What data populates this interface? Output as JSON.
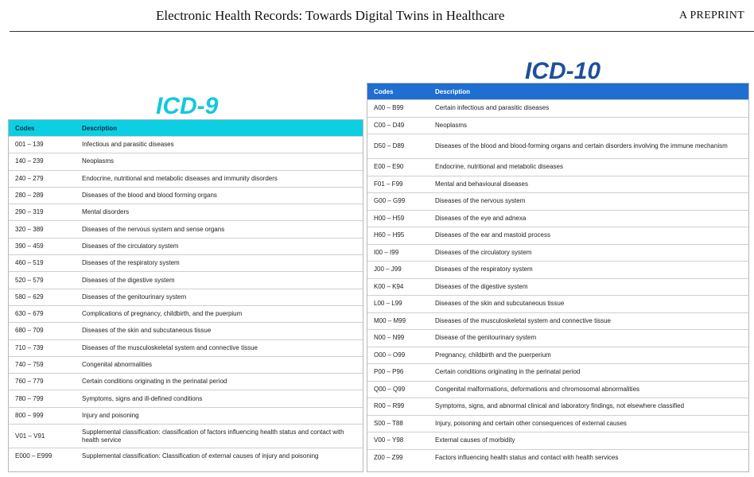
{
  "header": {
    "title": "Electronic Health Records: Towards Digital Twins in Healthcare",
    "tag": "A PREPRINT"
  },
  "icd9": {
    "title": "ICD-9",
    "columns": [
      "Codes",
      "Description"
    ],
    "accent_color": "#14c8dc",
    "rows": [
      {
        "code": "001 – 139",
        "desc": "Infectious and parasitic diseases"
      },
      {
        "code": "140 – 239",
        "desc": "Neoplasms"
      },
      {
        "code": "240 – 279",
        "desc": "Endocrine, nutritional and metabolic diseases and immunity disorders"
      },
      {
        "code": "280 – 289",
        "desc": "Diseases of the blood and blood forming organs"
      },
      {
        "code": "290 – 319",
        "desc": "Mental disorders"
      },
      {
        "code": "320 – 389",
        "desc": "Diseases of the nervous system and sense organs"
      },
      {
        "code": "390 – 459",
        "desc": "Diseases of the circulatory system"
      },
      {
        "code": "460 – 519",
        "desc": "Diseases of the respiratory system"
      },
      {
        "code": "520 – 579",
        "desc": "Diseases of the digestive system"
      },
      {
        "code": "580 – 629",
        "desc": "Diseases of the genitourinary system"
      },
      {
        "code": "630 – 679",
        "desc": "Complications of pregnancy, childbirth, and the puerpium"
      },
      {
        "code": "680 – 709",
        "desc": "Diseases of the skin and subcutaneous tissue"
      },
      {
        "code": "710 – 739",
        "desc": "Diseases of the musculoskeletal system and connective tissue"
      },
      {
        "code": "740 – 759",
        "desc": "Congenital abnormalities"
      },
      {
        "code": "760 – 779",
        "desc": "Certain conditions originating in the perinatal period"
      },
      {
        "code": "780 – 799",
        "desc": "Symptoms, signs and ill-defined conditions"
      },
      {
        "code": "800 – 999",
        "desc": "Injury and poisoning"
      },
      {
        "code": "V01 – V91",
        "desc": "Supplemental classification: classification of factors influencing health status and contact with health service"
      },
      {
        "code": "E000 – E999",
        "desc": "Supplemental classification: Classification of external causes of injury and poisoning"
      }
    ]
  },
  "icd10": {
    "title": "ICD-10",
    "columns": [
      "Codes",
      "Description"
    ],
    "accent_color": "#1f6fd1",
    "rows": [
      {
        "code": "A00 – B99",
        "desc": "Certain infectious and parasitic diseases"
      },
      {
        "code": "C00 – D49",
        "desc": "Neoplasms"
      },
      {
        "code": "D50 – D89",
        "desc": "Diseases of the blood and blood-forming organs and certain disorders involving the immune mechanism"
      },
      {
        "code": "E00 – E90",
        "desc": "Endocrine, nutritional and metabolic diseases"
      },
      {
        "code": "F01 – F99",
        "desc": "Mental and behavioural diseases"
      },
      {
        "code": "G00 – G99",
        "desc": "Diseases of the nervous system"
      },
      {
        "code": "H00 – H59",
        "desc": "Diseases of the eye and adnexa"
      },
      {
        "code": "H60 – H95",
        "desc": "Diseases of the ear and mastoid process"
      },
      {
        "code": "I00 – I99",
        "desc": "Diseases of the circulatory system"
      },
      {
        "code": "J00 – J99",
        "desc": "Diseases of the respiratory system"
      },
      {
        "code": "K00 – K94",
        "desc": "Diseases of the digestive system"
      },
      {
        "code": "L00 – L99",
        "desc": "Diseases of the skin and subcutaneous tissue"
      },
      {
        "code": "M00 – M99",
        "desc": "Diseases of the musculoskeletal system and connective tissue"
      },
      {
        "code": "N00 – N99",
        "desc": "Disease of the genitourinary system"
      },
      {
        "code": "O00 – O99",
        "desc": "Pregnancy, childbirth and the puerperium"
      },
      {
        "code": "P00 – P96",
        "desc": "Certain conditions originating in the perinatal period"
      },
      {
        "code": "Q00 – Q99",
        "desc": "Congenital malformations, deformations and chromosomal abnormalities"
      },
      {
        "code": "R00 – R99",
        "desc": "Symptoms, signs, and abnormal clinical and laboratory findings, not elsewhere classified"
      },
      {
        "code": "S00 – T88",
        "desc": "Injury, poisoning and certain other consequences of external causes"
      },
      {
        "code": "V00 – Y98",
        "desc": "External causes of morbidity"
      },
      {
        "code": "Z00 – Z99",
        "desc": "Factors influencing health status and contact with health services"
      }
    ]
  }
}
